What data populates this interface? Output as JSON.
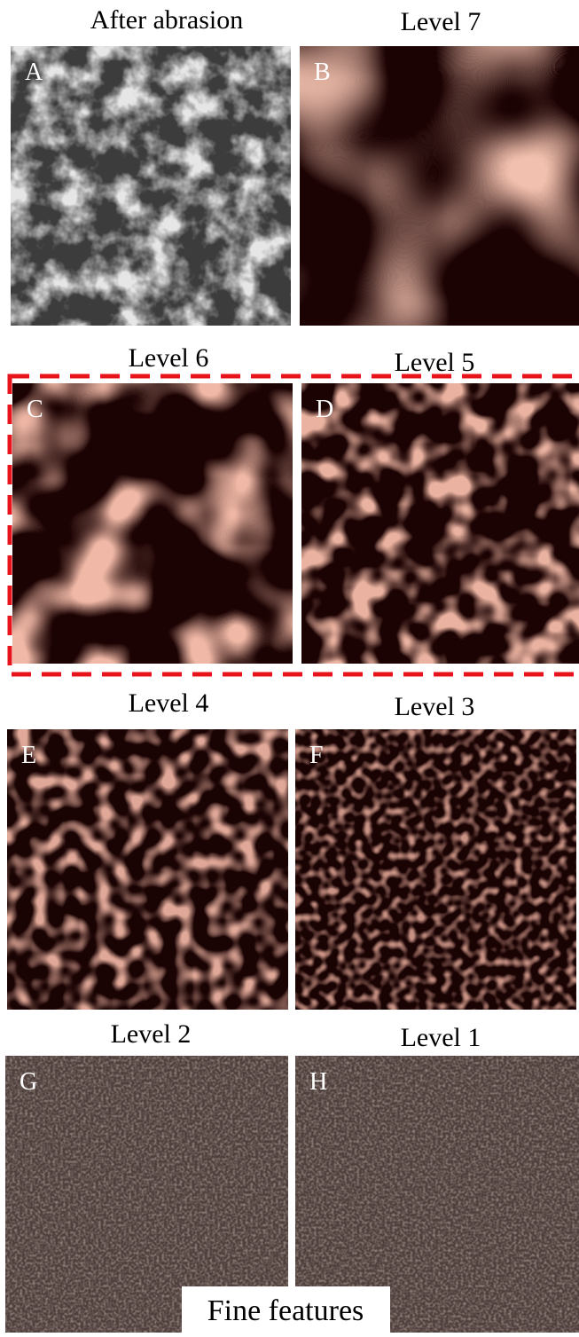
{
  "panels": [
    {
      "title": "After abrasion",
      "label": "A"
    },
    {
      "title": "Level 7",
      "label": "B"
    },
    {
      "title": "Level 6",
      "label": "C"
    },
    {
      "title": "Level 5",
      "label": "D"
    },
    {
      "title": "Level 4",
      "label": "E"
    },
    {
      "title": "Level 3",
      "label": "F"
    },
    {
      "title": "Level 2",
      "label": "G"
    },
    {
      "title": "Level 1",
      "label": "H"
    }
  ],
  "footer": "Fine features"
}
